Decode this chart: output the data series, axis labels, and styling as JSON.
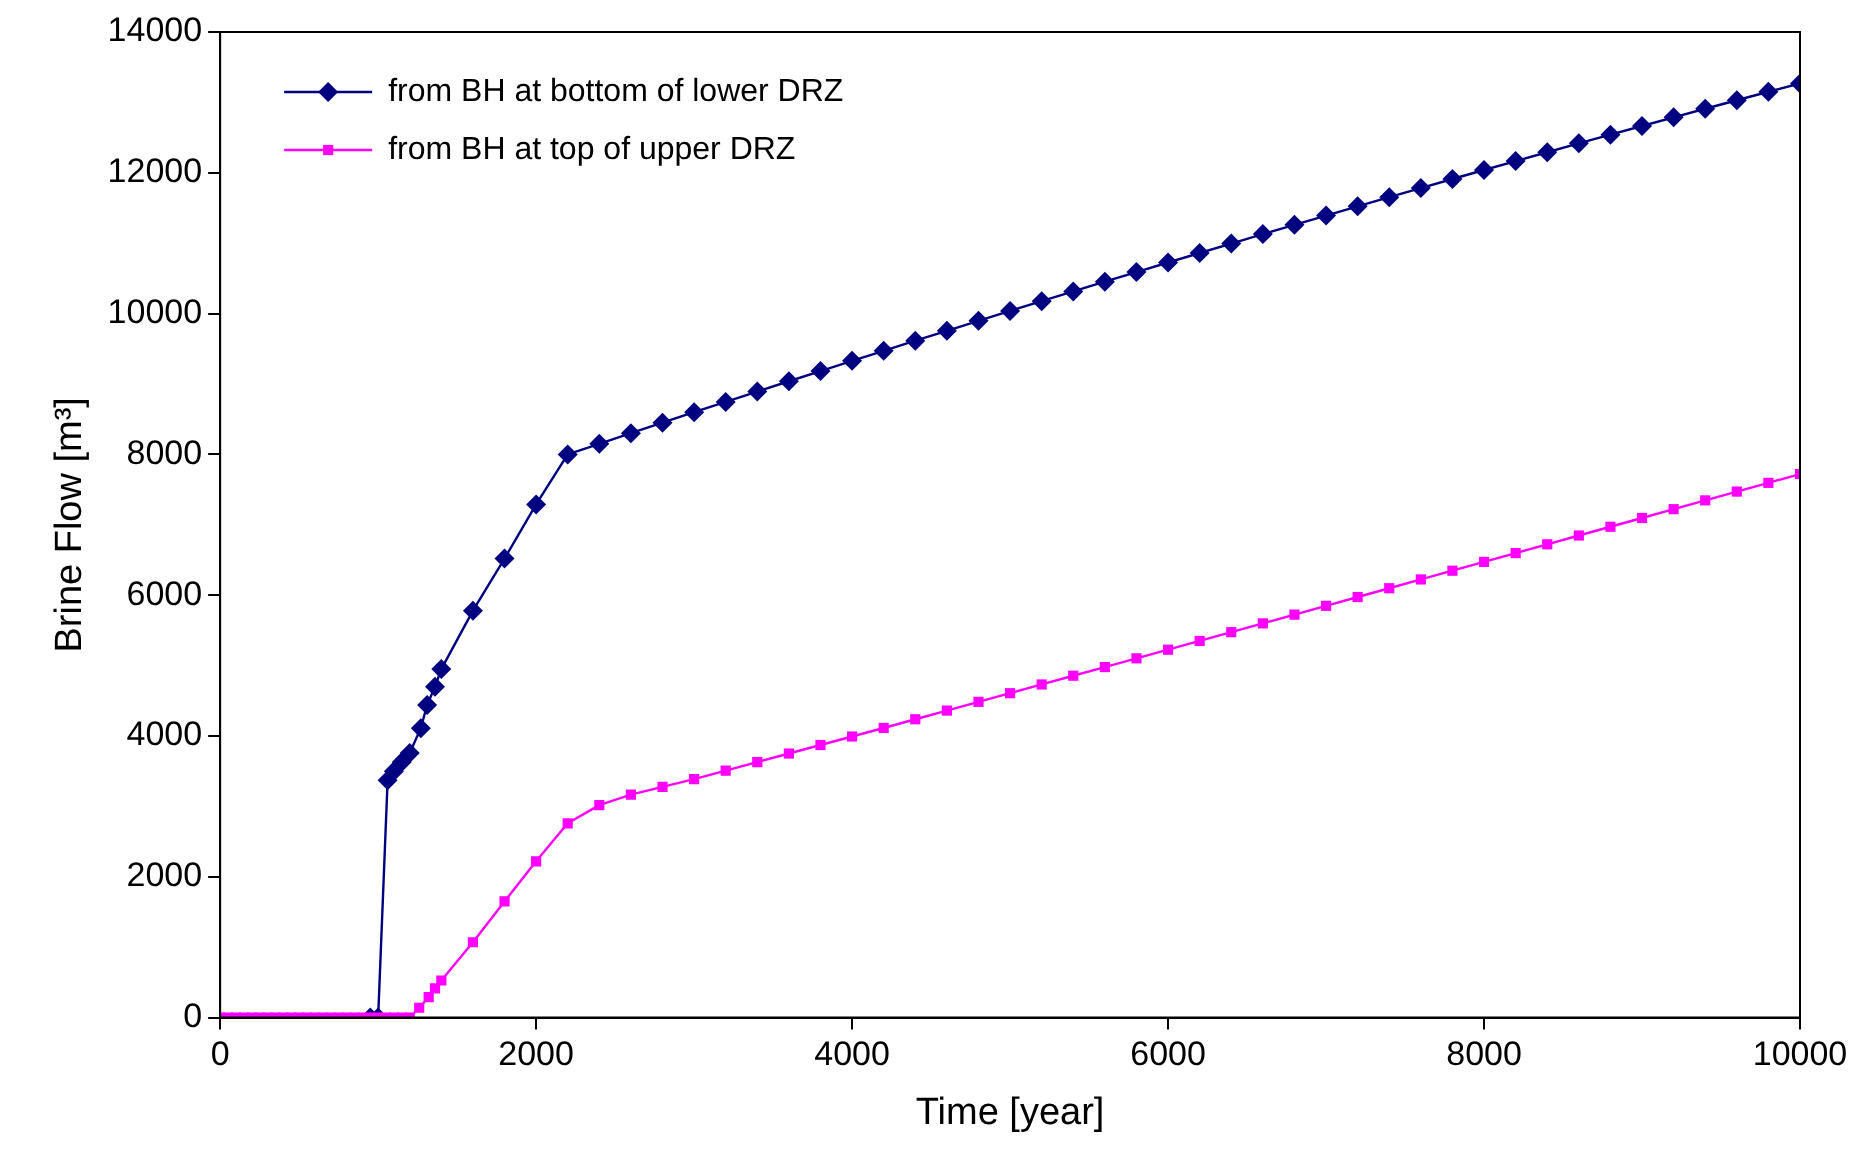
{
  "chart_data": {
    "type": "line",
    "xlabel": "Time [year]",
    "ylabel": "Brine Flow [m³]",
    "xlim": [
      0,
      10000
    ],
    "xticks": [
      0,
      2000,
      4000,
      6000,
      8000,
      10000
    ],
    "ylim": [
      0,
      14000
    ],
    "yticks": [
      0,
      2000,
      4000,
      6000,
      8000,
      10000,
      12000,
      14000
    ],
    "grid": false,
    "legend": "top left",
    "line_style": "solid",
    "series": [
      {
        "name": "from BH at bottom of lower DRZ",
        "color": "#000080",
        "marker": "diamond",
        "x": [
          950,
          1000,
          1060,
          1100,
          1150,
          1200,
          1270,
          1310,
          1360,
          1400,
          1600,
          1800,
          2000,
          2200,
          2400,
          2600,
          2800,
          3000,
          3200,
          3400,
          3600,
          3800,
          4000,
          4200,
          4400,
          4600,
          4800,
          5000,
          5200,
          5400,
          5600,
          5800,
          6000,
          6200,
          6400,
          6600,
          6800,
          7000,
          7200,
          7400,
          7600,
          7800,
          8000,
          8200,
          8400,
          8600,
          8800,
          9000,
          9200,
          9400,
          9600,
          9800,
          10000
        ],
        "values": [
          0,
          0,
          3370,
          3500,
          3630,
          3760,
          4110,
          4440,
          4700,
          4950,
          5780,
          6520,
          7290,
          8000,
          8151,
          8301,
          8450,
          8599,
          8746,
          8893,
          9039,
          9184,
          9329,
          9472,
          9615,
          9756,
          9897,
          10038,
          10177,
          10315,
          10453,
          10590,
          10726,
          10861,
          10995,
          11129,
          11261,
          11393,
          11524,
          11654,
          11783,
          11912,
          12040,
          12166,
          12292,
          12418,
          12542,
          12665,
          12788,
          12910,
          13031,
          13151,
          13270
        ]
      },
      {
        "name": "from BH at top of upper DRZ",
        "color": "#ff00ff",
        "marker": "square",
        "x": [
          0,
          50,
          100,
          150,
          200,
          250,
          300,
          350,
          400,
          450,
          500,
          550,
          600,
          650,
          700,
          750,
          800,
          850,
          900,
          950,
          1000,
          1050,
          1100,
          1150,
          1200,
          1260,
          1320,
          1360,
          1400,
          1600,
          1800,
          2000,
          2200,
          2400,
          2600,
          2800,
          3000,
          3200,
          3400,
          3600,
          3800,
          4000,
          4200,
          4400,
          4600,
          4800,
          5000,
          5200,
          5400,
          5600,
          5800,
          6000,
          6200,
          6400,
          6600,
          6800,
          7000,
          7200,
          7400,
          7600,
          7800,
          8000,
          8200,
          8400,
          8600,
          8800,
          9000,
          9200,
          9400,
          9600,
          9800,
          10000
        ],
        "values": [
          0,
          0,
          0,
          0,
          0,
          0,
          0,
          0,
          0,
          0,
          0,
          0,
          0,
          0,
          0,
          0,
          0,
          0,
          0,
          0,
          0,
          0,
          0,
          0,
          0,
          140,
          290,
          415,
          527,
          1070,
          1650,
          2220,
          2760,
          3018,
          3167,
          3277,
          3387,
          3508,
          3630,
          3751,
          3872,
          3993,
          4114,
          4238,
          4361,
          4485,
          4608,
          4732,
          4856,
          4979,
          5103,
          5226,
          5350,
          5475,
          5600,
          5724,
          5849,
          5974,
          6099,
          6224,
          6348,
          6473,
          6598,
          6723,
          6848,
          6972,
          7097,
          7222,
          7347,
          7472,
          7596,
          7721
        ]
      }
    ]
  }
}
